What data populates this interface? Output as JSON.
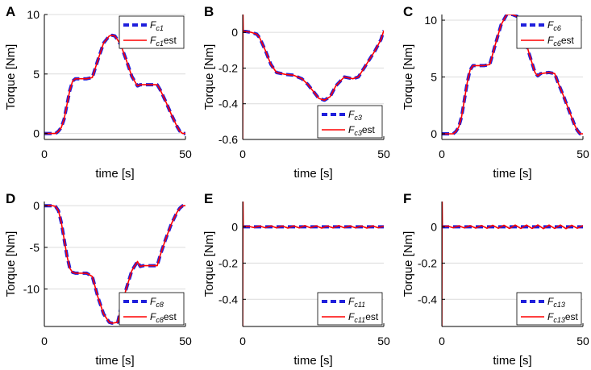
{
  "figure": {
    "colors": {
      "ref": "#1f1fdc",
      "est": "#ff0000",
      "grid": "#dcdcdc",
      "axis": "#000000"
    }
  },
  "chart_data": [
    {
      "type": "line",
      "panel": "A",
      "xlabel": "time [s]",
      "ylabel": "Torque [Nm]",
      "xlim": [
        0,
        50
      ],
      "ylim": [
        -0.5,
        10
      ],
      "xticks": [
        0,
        50
      ],
      "xtick_labels": [
        "0",
        "50"
      ],
      "yticks": [
        0,
        5,
        10
      ],
      "ytick_labels": [
        "0",
        "5",
        "10"
      ],
      "legend_position": "top-right",
      "series": [
        {
          "name": "F_c1",
          "label_main": "F",
          "label_sub": "c1",
          "label_suffix": "",
          "style": "dashed",
          "color": "#1f1fdc",
          "x": [
            0,
            4,
            5,
            6,
            7,
            8,
            9,
            10,
            11,
            15,
            17,
            19,
            21,
            23,
            24,
            25,
            27,
            29,
            31,
            33,
            34,
            35,
            40,
            41,
            43,
            45,
            47,
            48,
            49,
            50
          ],
          "y": [
            0,
            0,
            0.2,
            0.5,
            1.2,
            2.4,
            3.6,
            4.4,
            4.6,
            4.6,
            4.7,
            6.2,
            7.6,
            8.2,
            8.25,
            8.2,
            7.5,
            6.2,
            4.8,
            4.0,
            4.1,
            4.1,
            4.1,
            3.7,
            2.7,
            1.6,
            0.6,
            0.2,
            0,
            0
          ]
        },
        {
          "name": "F_c1est",
          "label_main": "F",
          "label_sub": "c1",
          "label_suffix": "est",
          "style": "solid",
          "color": "#ff0000",
          "x": [
            0,
            4,
            5,
            6,
            7,
            8,
            9,
            10,
            11,
            15,
            17,
            19,
            21,
            23,
            24,
            25,
            27,
            29,
            31,
            33,
            34,
            35,
            40,
            41,
            43,
            45,
            47,
            48,
            49,
            50
          ],
          "y": [
            0,
            0,
            0.2,
            0.5,
            1.2,
            2.4,
            3.6,
            4.4,
            4.6,
            4.6,
            4.7,
            6.2,
            7.6,
            8.2,
            8.25,
            8.2,
            7.5,
            6.2,
            4.8,
            4.0,
            4.1,
            4.1,
            4.1,
            3.7,
            2.7,
            1.6,
            0.6,
            0.2,
            0,
            0
          ]
        }
      ]
    },
    {
      "type": "line",
      "panel": "B",
      "xlabel": "time [s]",
      "ylabel": "Torque [Nm]",
      "xlim": [
        0,
        50
      ],
      "ylim": [
        -0.6,
        0.1
      ],
      "xticks": [
        0,
        50
      ],
      "xtick_labels": [
        "0",
        "50"
      ],
      "yticks": [
        0,
        -0.2,
        -0.4,
        -0.6
      ],
      "ytick_labels": [
        "0",
        "-0.2",
        "-0.4",
        "-0.6"
      ],
      "legend_position": "bottom-right",
      "series": [
        {
          "name": "F_c3",
          "label_main": "F",
          "label_sub": "c3",
          "label_suffix": "",
          "style": "dashed",
          "color": "#1f1fdc",
          "x": [
            0,
            1,
            3,
            5,
            6,
            8,
            10,
            12,
            15,
            18,
            21,
            23,
            25,
            27,
            29,
            31,
            33,
            36,
            39,
            41,
            43,
            45,
            47,
            49,
            50
          ],
          "y": [
            0.005,
            0.005,
            0,
            -0.01,
            -0.03,
            -0.1,
            -0.18,
            -0.225,
            -0.235,
            -0.24,
            -0.26,
            -0.29,
            -0.33,
            -0.37,
            -0.38,
            -0.36,
            -0.3,
            -0.25,
            -0.26,
            -0.25,
            -0.2,
            -0.15,
            -0.1,
            -0.04,
            0.01
          ]
        },
        {
          "name": "F_c3est",
          "label_main": "F",
          "label_sub": "c3",
          "label_suffix": "est",
          "style": "solid",
          "color": "#ff0000",
          "x": [
            0,
            0.1,
            0.2,
            1,
            3,
            5,
            6,
            8,
            10,
            12,
            15,
            18,
            21,
            23,
            25,
            27,
            29,
            31,
            33,
            36,
            39,
            41,
            43,
            45,
            47,
            49,
            50
          ],
          "y": [
            -0.6,
            0.1,
            0.005,
            0.005,
            0,
            -0.01,
            -0.03,
            -0.1,
            -0.18,
            -0.225,
            -0.235,
            -0.24,
            -0.26,
            -0.29,
            -0.33,
            -0.37,
            -0.38,
            -0.36,
            -0.3,
            -0.25,
            -0.26,
            -0.25,
            -0.2,
            -0.15,
            -0.1,
            -0.04,
            0.01
          ]
        }
      ]
    },
    {
      "type": "line",
      "panel": "C",
      "xlabel": "time [s]",
      "ylabel": "Torque [Nm]",
      "xlim": [
        0,
        50
      ],
      "ylim": [
        -0.5,
        10.5
      ],
      "xticks": [
        0,
        50
      ],
      "xtick_labels": [
        "0",
        "50"
      ],
      "yticks": [
        0,
        5,
        10
      ],
      "ytick_labels": [
        "0",
        "5",
        "10"
      ],
      "legend_position": "top-right",
      "series": [
        {
          "name": "F_c6",
          "label_main": "F",
          "label_sub": "c6",
          "label_suffix": "",
          "style": "dashed",
          "color": "#1f1fdc",
          "x": [
            0,
            4,
            5,
            6,
            7,
            8,
            9,
            10,
            11,
            15,
            17,
            19,
            21,
            23,
            25,
            27,
            29,
            31,
            33,
            34,
            35,
            38,
            40,
            41,
            43,
            45,
            47,
            48,
            49,
            50
          ],
          "y": [
            0,
            0,
            0.2,
            0.6,
            1.5,
            3.0,
            4.5,
            5.6,
            6.0,
            6.0,
            6.1,
            7.9,
            9.6,
            10.5,
            10.5,
            10.3,
            8.8,
            7.0,
            5.4,
            5.1,
            5.3,
            5.4,
            5.3,
            4.6,
            3.4,
            2.1,
            0.8,
            0.3,
            0,
            0
          ]
        },
        {
          "name": "F_c6est",
          "label_main": "F",
          "label_sub": "c6",
          "label_suffix": "est",
          "style": "solid",
          "color": "#ff0000",
          "x": [
            0,
            4,
            5,
            6,
            7,
            8,
            9,
            10,
            11,
            15,
            17,
            19,
            21,
            23,
            25,
            27,
            29,
            31,
            33,
            34,
            35,
            38,
            40,
            41,
            43,
            45,
            47,
            48,
            49,
            50
          ],
          "y": [
            0,
            0,
            0.2,
            0.6,
            1.5,
            3.0,
            4.5,
            5.6,
            6.0,
            6.0,
            6.1,
            7.9,
            9.6,
            10.5,
            10.5,
            10.3,
            8.8,
            7.0,
            5.4,
            5.1,
            5.3,
            5.4,
            5.3,
            4.6,
            3.4,
            2.1,
            0.8,
            0.3,
            0,
            0
          ]
        }
      ]
    },
    {
      "type": "line",
      "panel": "D",
      "xlabel": "time [s]",
      "ylabel": "Torque [Nm]",
      "xlim": [
        0,
        50
      ],
      "ylim": [
        -14.5,
        0.5
      ],
      "xticks": [
        0,
        50
      ],
      "xtick_labels": [
        "0",
        "50"
      ],
      "yticks": [
        0,
        -5,
        -10
      ],
      "ytick_labels": [
        "0",
        "-5",
        "-10"
      ],
      "legend_position": "bottom-right",
      "series": [
        {
          "name": "F_c8",
          "label_main": "F",
          "label_sub": "c8",
          "label_suffix": "",
          "style": "dashed",
          "color": "#1f1fdc",
          "x": [
            0,
            3,
            4,
            5,
            6,
            7,
            8,
            9,
            10,
            11,
            15,
            17,
            19,
            21,
            23,
            24,
            26,
            27,
            29,
            31,
            33,
            34,
            35,
            40,
            41,
            43,
            45,
            47,
            48,
            49,
            50
          ],
          "y": [
            0,
            0,
            -0.1,
            -0.6,
            -2.0,
            -4.0,
            -6.0,
            -7.5,
            -8.0,
            -8.1,
            -8.1,
            -8.5,
            -11.0,
            -13.0,
            -14.0,
            -14.1,
            -14.0,
            -12.5,
            -10.0,
            -7.8,
            -6.7,
            -7.3,
            -7.2,
            -7.2,
            -6.0,
            -4.0,
            -2.2,
            -0.8,
            -0.3,
            0,
            0
          ]
        },
        {
          "name": "F_c8est",
          "label_main": "F",
          "label_sub": "c8",
          "label_suffix": "est",
          "style": "solid",
          "color": "#ff0000",
          "x": [
            0,
            3,
            4,
            5,
            6,
            7,
            8,
            9,
            10,
            11,
            15,
            17,
            19,
            21,
            23,
            24,
            26,
            27,
            29,
            31,
            33,
            34,
            35,
            40,
            41,
            43,
            45,
            47,
            48,
            49,
            50
          ],
          "y": [
            0,
            0,
            -0.1,
            -0.6,
            -2.0,
            -4.0,
            -6.0,
            -7.5,
            -8.0,
            -8.1,
            -8.1,
            -8.5,
            -11.0,
            -13.0,
            -14.0,
            -14.1,
            -14.0,
            -12.5,
            -10.0,
            -7.8,
            -6.7,
            -7.3,
            -7.2,
            -7.2,
            -6.0,
            -4.0,
            -2.2,
            -0.8,
            -0.3,
            0,
            0
          ]
        }
      ]
    },
    {
      "type": "line",
      "panel": "E",
      "xlabel": "time [s]",
      "ylabel": "Torque [Nm]",
      "xlim": [
        0,
        50
      ],
      "ylim": [
        -0.55,
        0.14
      ],
      "xticks": [
        0,
        50
      ],
      "xtick_labels": [
        "0",
        "50"
      ],
      "yticks": [
        0,
        -0.2,
        -0.4
      ],
      "ytick_labels": [
        "0",
        "-0.2",
        "-0.4"
      ],
      "legend_position": "bottom-right",
      "series": [
        {
          "name": "F_c11",
          "label_main": "F",
          "label_sub": "c11",
          "label_suffix": "",
          "style": "dashed",
          "color": "#1f1fdc",
          "x": [
            0,
            50
          ],
          "y": [
            0,
            0
          ]
        },
        {
          "name": "F_c11est",
          "label_main": "F",
          "label_sub": "c11",
          "label_suffix": "est",
          "style": "solid",
          "color": "#ff0000",
          "x": [
            0,
            0.1,
            0.2,
            2,
            4,
            6,
            8,
            10,
            12,
            14,
            16,
            18,
            20,
            22,
            24,
            26,
            28,
            30,
            32,
            34,
            36,
            38,
            40,
            42,
            44,
            46,
            48,
            50
          ],
          "y": [
            -0.55,
            0.14,
            0,
            0.004,
            -0.004,
            0.005,
            -0.005,
            0.006,
            -0.006,
            0.005,
            -0.007,
            0.006,
            -0.006,
            0.007,
            -0.005,
            0.006,
            -0.007,
            0.005,
            -0.006,
            0.007,
            -0.005,
            0.006,
            -0.006,
            0.005,
            -0.007,
            0.006,
            -0.005,
            0.004
          ]
        }
      ]
    },
    {
      "type": "line",
      "panel": "F",
      "xlabel": "time [s]",
      "ylabel": "Torque [Nm]",
      "xlim": [
        0,
        50
      ],
      "ylim": [
        -0.55,
        0.14
      ],
      "xticks": [
        0,
        50
      ],
      "xtick_labels": [
        "0",
        "50"
      ],
      "yticks": [
        0,
        -0.2,
        -0.4
      ],
      "ytick_labels": [
        "0",
        "-0.2",
        "-0.4"
      ],
      "legend_position": "bottom-right",
      "series": [
        {
          "name": "F_c13",
          "label_main": "F",
          "label_sub": "c13",
          "label_suffix": "",
          "style": "dashed",
          "color": "#1f1fdc",
          "x": [
            0,
            50
          ],
          "y": [
            0,
            0
          ]
        },
        {
          "name": "F_c13est",
          "label_main": "F",
          "label_sub": "c13",
          "label_suffix": "est",
          "style": "solid",
          "color": "#ff0000",
          "x": [
            0,
            0.1,
            0.2,
            2,
            4,
            6,
            8,
            10,
            12,
            14,
            16,
            18,
            20,
            22,
            24,
            26,
            28,
            30,
            32,
            34,
            36,
            38,
            40,
            42,
            44,
            46,
            48,
            50
          ],
          "y": [
            -0.55,
            0.14,
            0,
            0.005,
            -0.005,
            0.006,
            -0.006,
            0.007,
            -0.007,
            0.008,
            -0.008,
            0.009,
            -0.008,
            0.009,
            -0.009,
            0.01,
            -0.009,
            0.01,
            -0.009,
            0.011,
            -0.01,
            0.01,
            -0.009,
            0.01,
            -0.01,
            0.009,
            -0.008,
            0.007
          ]
        }
      ]
    }
  ]
}
